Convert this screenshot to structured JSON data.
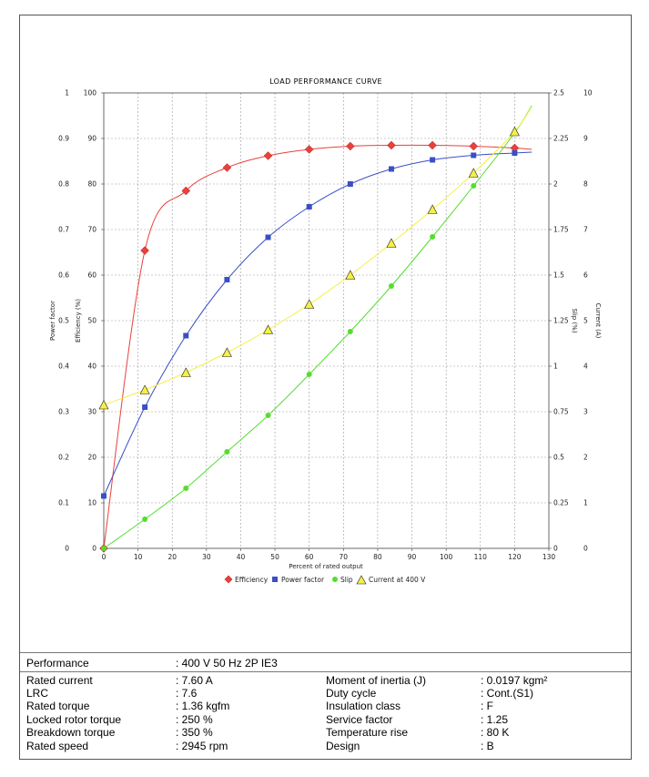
{
  "chart_data": {
    "type": "line",
    "title": "LOAD PERFORMANCE CURVE",
    "xlabel": "Percent of rated output",
    "xlim": [
      0,
      130
    ],
    "x_ticks": [
      "0",
      "10",
      "20",
      "30",
      "40",
      "50",
      "60",
      "70",
      "80",
      "90",
      "100",
      "110",
      "120",
      "130"
    ],
    "left_axes": [
      {
        "label": "Power factor",
        "ylim": [
          0,
          1
        ],
        "ticks": [
          "0",
          "0.1",
          "0.2",
          "0.3",
          "0.4",
          "0.5",
          "0.6",
          "0.7",
          "0.8",
          "0.9",
          "1"
        ]
      },
      {
        "label": "Efficiency (%)",
        "ylim": [
          0,
          100
        ],
        "ticks": [
          "0",
          "10",
          "20",
          "30",
          "40",
          "50",
          "60",
          "70",
          "80",
          "90",
          "100"
        ]
      }
    ],
    "right_axes": [
      {
        "label": "Slip (%)",
        "ylim": [
          0,
          2.5
        ],
        "ticks": [
          "0",
          "0.25",
          "0.5",
          "0.75",
          "1",
          "1.25",
          "1.5",
          "1.75",
          "2",
          "2.25",
          "2.5"
        ]
      },
      {
        "label": "Current (A)",
        "ylim": [
          0,
          10
        ],
        "ticks": [
          "0",
          "1",
          "2",
          "3",
          "4",
          "5",
          "6",
          "7",
          "8",
          "9",
          "10"
        ]
      }
    ],
    "grid": true,
    "legend_position": "bottom",
    "series": [
      {
        "name": "Efficiency",
        "axis": "Efficiency (%)",
        "color": "#e8413c",
        "marker": "diamond",
        "x": [
          0,
          12,
          24,
          36,
          48,
          60,
          72,
          84,
          96,
          108,
          120
        ],
        "y": [
          0,
          65.4,
          78.5,
          83.6,
          86.2,
          87.6,
          88.3,
          88.5,
          88.5,
          88.3,
          87.9
        ],
        "curve_end": 87.6
      },
      {
        "name": "Power factor",
        "axis": "Power factor",
        "color": "#3a4fc4",
        "marker": "square",
        "x": [
          0,
          12,
          24,
          36,
          48,
          60,
          72,
          84,
          96,
          108,
          120
        ],
        "y": [
          0.115,
          0.31,
          0.467,
          0.59,
          0.683,
          0.75,
          0.8,
          0.833,
          0.853,
          0.863,
          0.868
        ],
        "curve_end": 0.87
      },
      {
        "name": "Slip",
        "axis": "Slip (%)",
        "color": "#55dd2f",
        "marker": "circle",
        "x": [
          0,
          12,
          24,
          36,
          48,
          60,
          72,
          84,
          96,
          108,
          120
        ],
        "y": [
          0,
          0.16,
          0.33,
          0.53,
          0.73,
          0.955,
          1.19,
          1.44,
          1.71,
          1.99,
          2.28
        ],
        "curve_end": 2.43
      },
      {
        "name": "Current at 400 V",
        "axis": "Current (A)",
        "color": "#f5ef47",
        "marker": "triangle",
        "x": [
          0,
          12,
          24,
          36,
          48,
          60,
          72,
          84,
          96,
          108,
          120
        ],
        "y": [
          3.15,
          3.48,
          3.86,
          4.3,
          4.8,
          5.36,
          6.0,
          6.7,
          7.44,
          8.24,
          9.15
        ],
        "curve_end": 9.7
      }
    ]
  },
  "spec": {
    "performance_label": "Performance",
    "performance_value": ": 400 V 50 Hz 2P IE3",
    "left": [
      {
        "label": "Rated current",
        "value": ": 7.60 A"
      },
      {
        "label": "LRC",
        "value": ": 7.6"
      },
      {
        "label": "Rated torque",
        "value": ": 1.36 kgfm"
      },
      {
        "label": "Locked rotor torque",
        "value": ": 250 %"
      },
      {
        "label": "Breakdown torque",
        "value": ": 350 %"
      },
      {
        "label": "Rated speed",
        "value": ": 2945 rpm"
      }
    ],
    "right": [
      {
        "label": "Moment of inertia (J)",
        "value": ": 0.0197 kgm²"
      },
      {
        "label": "Duty cycle",
        "value": ": Cont.(S1)"
      },
      {
        "label": "Insulation class",
        "value": ": F"
      },
      {
        "label": "Service factor",
        "value": ": 1.25"
      },
      {
        "label": "Temperature rise",
        "value": ": 80 K"
      },
      {
        "label": "Design",
        "value": ": B"
      }
    ]
  }
}
